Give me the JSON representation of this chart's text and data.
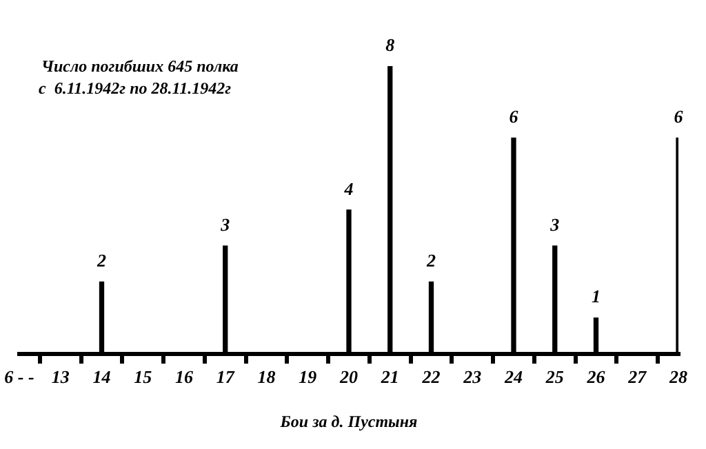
{
  "chart_data": {
    "type": "bar",
    "title": "Число погибших 645 полка",
    "subtitle": "с  6.11.1942г по 28.11.1942г",
    "xlabel": "Бои за д. Пустыня",
    "categories": [
      "6 - -",
      "13",
      "14",
      "15",
      "16",
      "17",
      "18",
      "19",
      "20",
      "21",
      "22",
      "23",
      "24",
      "25",
      "26",
      "27",
      "28"
    ],
    "values": [
      null,
      null,
      2,
      null,
      null,
      3,
      null,
      null,
      4,
      8,
      2,
      null,
      6,
      3,
      1,
      null,
      6
    ],
    "color": "#000000",
    "data_labels": true,
    "grid": false,
    "legend": false,
    "tick_labels": "x"
  }
}
